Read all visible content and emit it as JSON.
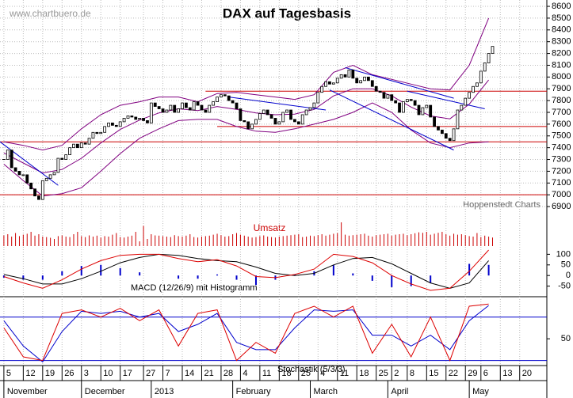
{
  "chart_data": {
    "type": "candlestick",
    "title": "DAX auf Tagesbasis",
    "watermark": "www.chartbuero.de",
    "source": "Hoppenstedt Charts",
    "xlim": [
      -1,
      140
    ],
    "xticks": [
      {
        "value": 0,
        "label": "5"
      },
      {
        "value": 5,
        "label": "12"
      },
      {
        "value": 10,
        "label": "19"
      },
      {
        "value": 15,
        "label": "26"
      },
      {
        "value": 20,
        "label": "3"
      },
      {
        "value": 25,
        "label": "10"
      },
      {
        "value": 30,
        "label": "17"
      },
      {
        "value": 36,
        "label": "27"
      },
      {
        "value": 41,
        "label": "7"
      },
      {
        "value": 46,
        "label": "14"
      },
      {
        "value": 51,
        "label": "21"
      },
      {
        "value": 56,
        "label": "28"
      },
      {
        "value": 61,
        "label": "4"
      },
      {
        "value": 66,
        "label": "11"
      },
      {
        "value": 71,
        "label": "18"
      },
      {
        "value": 76,
        "label": "25"
      },
      {
        "value": 81,
        "label": "4"
      },
      {
        "value": 86,
        "label": "11"
      },
      {
        "value": 91,
        "label": "18"
      },
      {
        "value": 96,
        "label": "25"
      },
      {
        "value": 100,
        "label": "2"
      },
      {
        "value": 104,
        "label": "8"
      },
      {
        "value": 109,
        "label": "15"
      },
      {
        "value": 114,
        "label": "22"
      },
      {
        "value": 119,
        "label": "29"
      },
      {
        "value": 123,
        "label": "6"
      },
      {
        "value": 128,
        "label": "13"
      },
      {
        "value": 133,
        "label": "20"
      }
    ],
    "month_ticks": [
      {
        "value": 0,
        "label": "November"
      },
      {
        "value": 20,
        "label": "December"
      },
      {
        "value": 38,
        "label": "2013"
      },
      {
        "value": 59,
        "label": "February"
      },
      {
        "value": 79,
        "label": "March"
      },
      {
        "value": 99,
        "label": "April"
      },
      {
        "value": 120,
        "label": "May"
      }
    ],
    "ylim": [
      6840,
      8654
    ],
    "yticks": [
      6900,
      7000,
      7100,
      7200,
      7300,
      7400,
      7500,
      7600,
      7700,
      7800,
      7900,
      8000,
      8100,
      8200,
      8300,
      8400,
      8500,
      8600
    ],
    "grid": true,
    "close": [
      7300,
      7380,
      7230,
      7200,
      7170,
      7170,
      7100,
      7050,
      6990,
      6960,
      7120,
      7140,
      7170,
      7190,
      7310,
      7300,
      7340,
      7400,
      7430,
      7400,
      7440,
      7430,
      7480,
      7530,
      7520,
      7530,
      7580,
      7610,
      7590,
      7580,
      7620,
      7650,
      7670,
      7660,
      7640,
      7650,
      7630,
      7610,
      7780,
      7750,
      7730,
      7700,
      7720,
      7760,
      7700,
      7730,
      7780,
      7740,
      7720,
      7790,
      7760,
      7720,
      7700,
      7760,
      7790,
      7830,
      7850,
      7840,
      7800,
      7780,
      7730,
      7630,
      7620,
      7560,
      7600,
      7640,
      7690,
      7720,
      7680,
      7650,
      7600,
      7620,
      7700,
      7720,
      7640,
      7620,
      7600,
      7680,
      7720,
      7740,
      7780,
      7870,
      7920,
      7960,
      7940,
      7950,
      7990,
      8020,
      8000,
      8060,
      7990,
      7950,
      7970,
      8000,
      7970,
      7920,
      7880,
      7870,
      7820,
      7850,
      7800,
      7780,
      7700,
      7790,
      7810,
      7800,
      7760,
      7680,
      7740,
      7760,
      7660,
      7580,
      7550,
      7520,
      7480,
      7460,
      7560,
      7720,
      7760,
      7820,
      7870,
      7920,
      7950,
      8050,
      8120,
      8200,
      8260
    ],
    "bands": {
      "color": "#800080",
      "x": [
        0,
        5,
        10,
        15,
        20,
        25,
        30,
        35,
        40,
        45,
        50,
        55,
        60,
        65,
        70,
        75,
        80,
        85,
        90,
        95,
        100,
        105,
        110,
        115,
        120,
        125
      ],
      "upper": [
        7450,
        7420,
        7380,
        7420,
        7560,
        7680,
        7760,
        7790,
        7830,
        7830,
        7790,
        7860,
        7870,
        7850,
        7830,
        7810,
        7850,
        8040,
        8100,
        8020,
        7980,
        7940,
        7900,
        7890,
        8100,
        8500
      ],
      "middle": [
        7355,
        7270,
        7185,
        7215,
        7310,
        7440,
        7555,
        7635,
        7695,
        7730,
        7715,
        7750,
        7725,
        7695,
        7680,
        7685,
        7725,
        7840,
        7900,
        7900,
        7840,
        7745,
        7670,
        7645,
        7770,
        7975
      ],
      "lower": [
        7260,
        7120,
        6990,
        7010,
        7060,
        7200,
        7350,
        7480,
        7560,
        7630,
        7640,
        7640,
        7580,
        7540,
        7530,
        7560,
        7600,
        7640,
        7700,
        7780,
        7700,
        7550,
        7440,
        7400,
        7440,
        7450
      ]
    },
    "levels": {
      "color": "#cc0000",
      "values": [
        7880,
        7580,
        7450,
        7000
      ],
      "start": [
        52,
        55,
        -1,
        -1
      ]
    },
    "trend_color": "#0000cc",
    "trendlines": [
      {
        "x": [
          -1,
          14
        ],
        "y": [
          7450,
          7080
        ]
      },
      {
        "x": [
          58,
          83
        ],
        "y": [
          7830,
          7720
        ]
      },
      {
        "x": [
          88,
          116
        ],
        "y": [
          8080,
          7820
        ]
      },
      {
        "x": [
          84,
          116
        ],
        "y": [
          7890,
          7380
        ]
      },
      {
        "x": [
          104,
          124
        ],
        "y": [
          7880,
          7730
        ]
      }
    ],
    "volume": {
      "label": "Umsatz",
      "color": "#cc0000",
      "values": [
        45,
        50,
        40,
        55,
        42,
        48,
        52,
        60,
        44,
        50,
        40,
        38,
        35,
        30,
        42,
        45,
        40,
        38,
        50,
        60,
        42,
        38,
        45,
        40,
        44,
        36,
        42,
        40,
        48,
        55,
        38,
        36,
        40,
        44,
        60,
        20,
        85,
        30,
        50,
        45,
        44,
        42,
        40,
        38,
        46,
        42,
        40,
        44,
        50,
        38,
        36,
        40,
        42,
        44,
        48,
        52,
        46,
        40,
        42,
        50,
        55,
        48,
        44,
        40,
        36,
        38,
        42,
        45,
        40,
        38,
        36,
        40,
        42,
        44,
        46,
        48,
        50,
        38,
        40,
        44,
        42,
        46,
        50,
        44,
        48,
        52,
        55,
        100,
        48,
        44,
        46,
        48,
        50,
        52,
        44,
        40,
        46,
        48,
        50,
        52,
        44,
        48,
        50,
        52,
        46,
        50,
        54,
        58,
        56,
        60,
        48,
        52,
        56,
        60,
        50,
        44,
        52,
        48,
        50,
        46,
        42,
        40,
        55,
        38,
        44,
        40,
        36
      ]
    },
    "macd": {
      "label": "MACD (12/26/9) mit Histogramm",
      "ylim": [
        -100,
        135
      ],
      "yticks": [
        -50,
        0,
        50,
        100
      ],
      "macd_color": "#dd0000",
      "signal_color": "#000000",
      "histogram_color": "#0000cc",
      "x": [
        0,
        5,
        10,
        15,
        20,
        25,
        30,
        35,
        40,
        45,
        50,
        55,
        60,
        65,
        70,
        75,
        80,
        85,
        90,
        95,
        100,
        105,
        110,
        115,
        120,
        125
      ],
      "macd": [
        -5,
        -35,
        -60,
        -20,
        30,
        70,
        95,
        100,
        100,
        80,
        65,
        75,
        45,
        -5,
        -10,
        5,
        30,
        100,
        90,
        60,
        0,
        -40,
        -70,
        -60,
        20,
        120
      ],
      "signal": [
        5,
        -15,
        -40,
        -40,
        -15,
        20,
        60,
        85,
        100,
        95,
        80,
        70,
        65,
        40,
        10,
        0,
        10,
        50,
        80,
        85,
        55,
        10,
        -35,
        -60,
        -35,
        70
      ],
      "histogram": [
        -10,
        -20,
        -20,
        20,
        45,
        50,
        35,
        15,
        0,
        -15,
        -15,
        5,
        -20,
        -45,
        -20,
        5,
        20,
        50,
        10,
        -25,
        -55,
        -50,
        -35,
        0,
        55,
        50
      ]
    },
    "stochastic": {
      "label": "Stochastik (5/3/3)",
      "ylim": [
        13,
        107
      ],
      "yticks": [
        50
      ],
      "levels": [
        20,
        80
      ],
      "level_color": "#0000cc",
      "k_color": "#dd0000",
      "d_color": "#0000cc",
      "x": [
        0,
        5,
        10,
        15,
        20,
        25,
        30,
        35,
        40,
        45,
        50,
        55,
        60,
        65,
        70,
        75,
        80,
        85,
        90,
        95,
        100,
        105,
        110,
        115,
        120,
        125
      ],
      "k": [
        65,
        25,
        20,
        85,
        90,
        80,
        92,
        75,
        90,
        40,
        85,
        90,
        20,
        45,
        30,
        85,
        95,
        80,
        95,
        30,
        70,
        25,
        80,
        20,
        95,
        98
      ],
      "d": [
        75,
        40,
        18,
        60,
        88,
        85,
        88,
        80,
        85,
        60,
        70,
        85,
        45,
        35,
        35,
        65,
        90,
        88,
        90,
        55,
        55,
        40,
        55,
        35,
        75,
        96
      ]
    }
  }
}
